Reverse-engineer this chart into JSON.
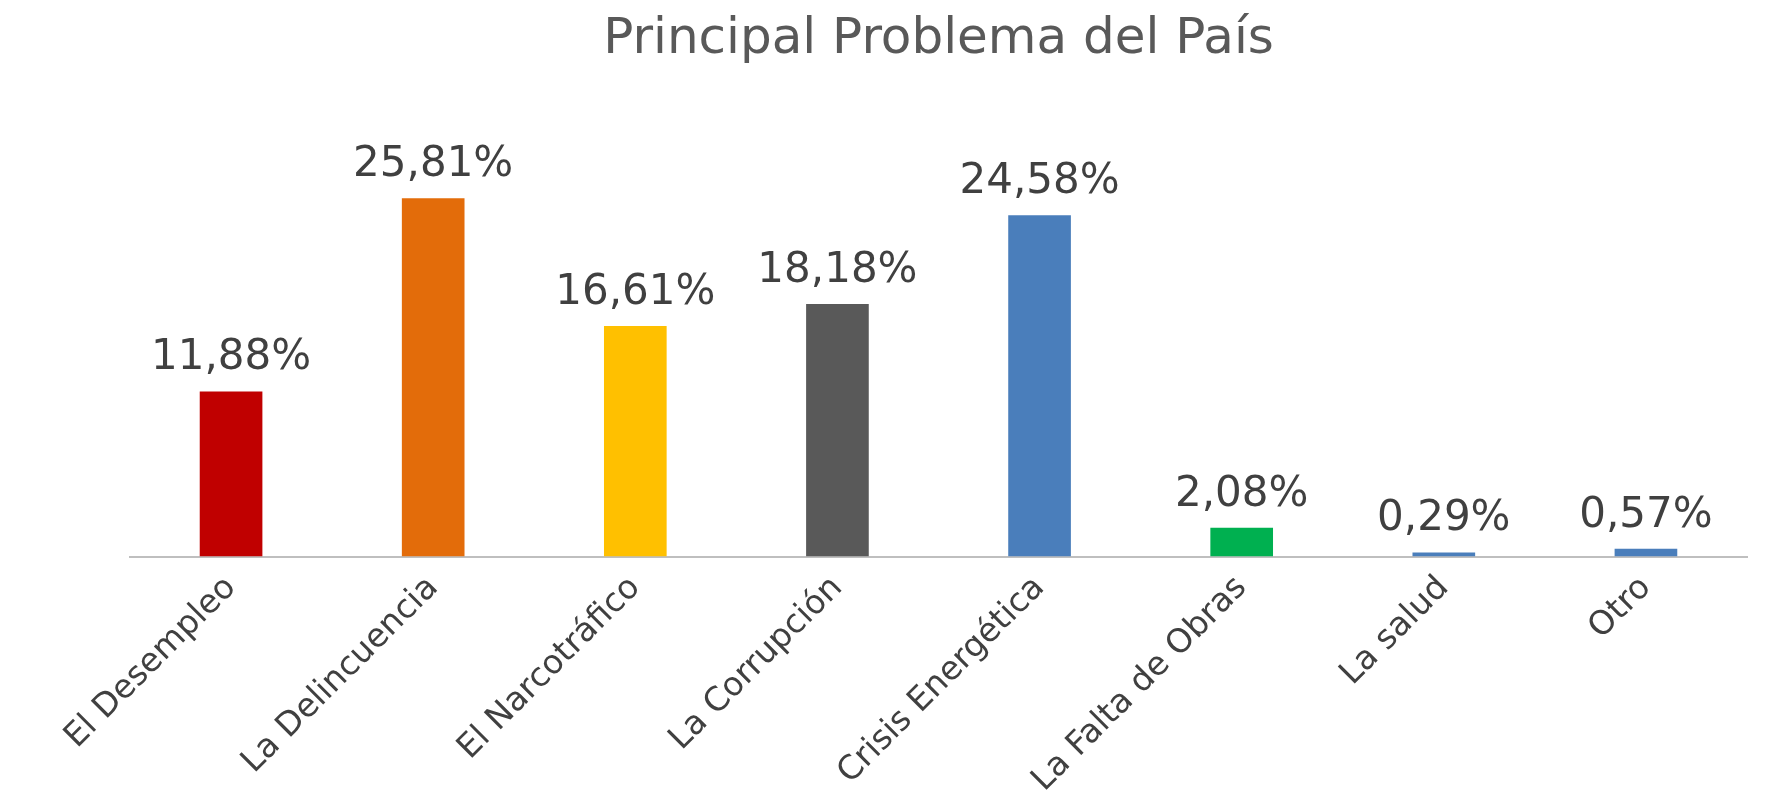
{
  "chart_data": {
    "type": "bar",
    "title": "Principal Problema del País",
    "categories": [
      "El Desempleo",
      "La Delincuencia",
      "El Narcotráfico",
      "La Corrupción",
      "Crisis Energética",
      "La Falta de Obras",
      "La salud",
      "Otro"
    ],
    "values": [
      11.88,
      25.81,
      16.61,
      18.18,
      24.58,
      2.08,
      0.29,
      0.57
    ],
    "colors": [
      "#c00000",
      "#e36c0a",
      "#ffc000",
      "#595959",
      "#4a7ebb",
      "#00b050",
      "#4a7ebb",
      "#4a7ebb"
    ],
    "value_labels": [
      "11,88%",
      "25,81%",
      "16,61%",
      "18,18%",
      "24,58%",
      "2,08%",
      "0,29%",
      "0,57%"
    ],
    "grid": false,
    "legend": false
  }
}
